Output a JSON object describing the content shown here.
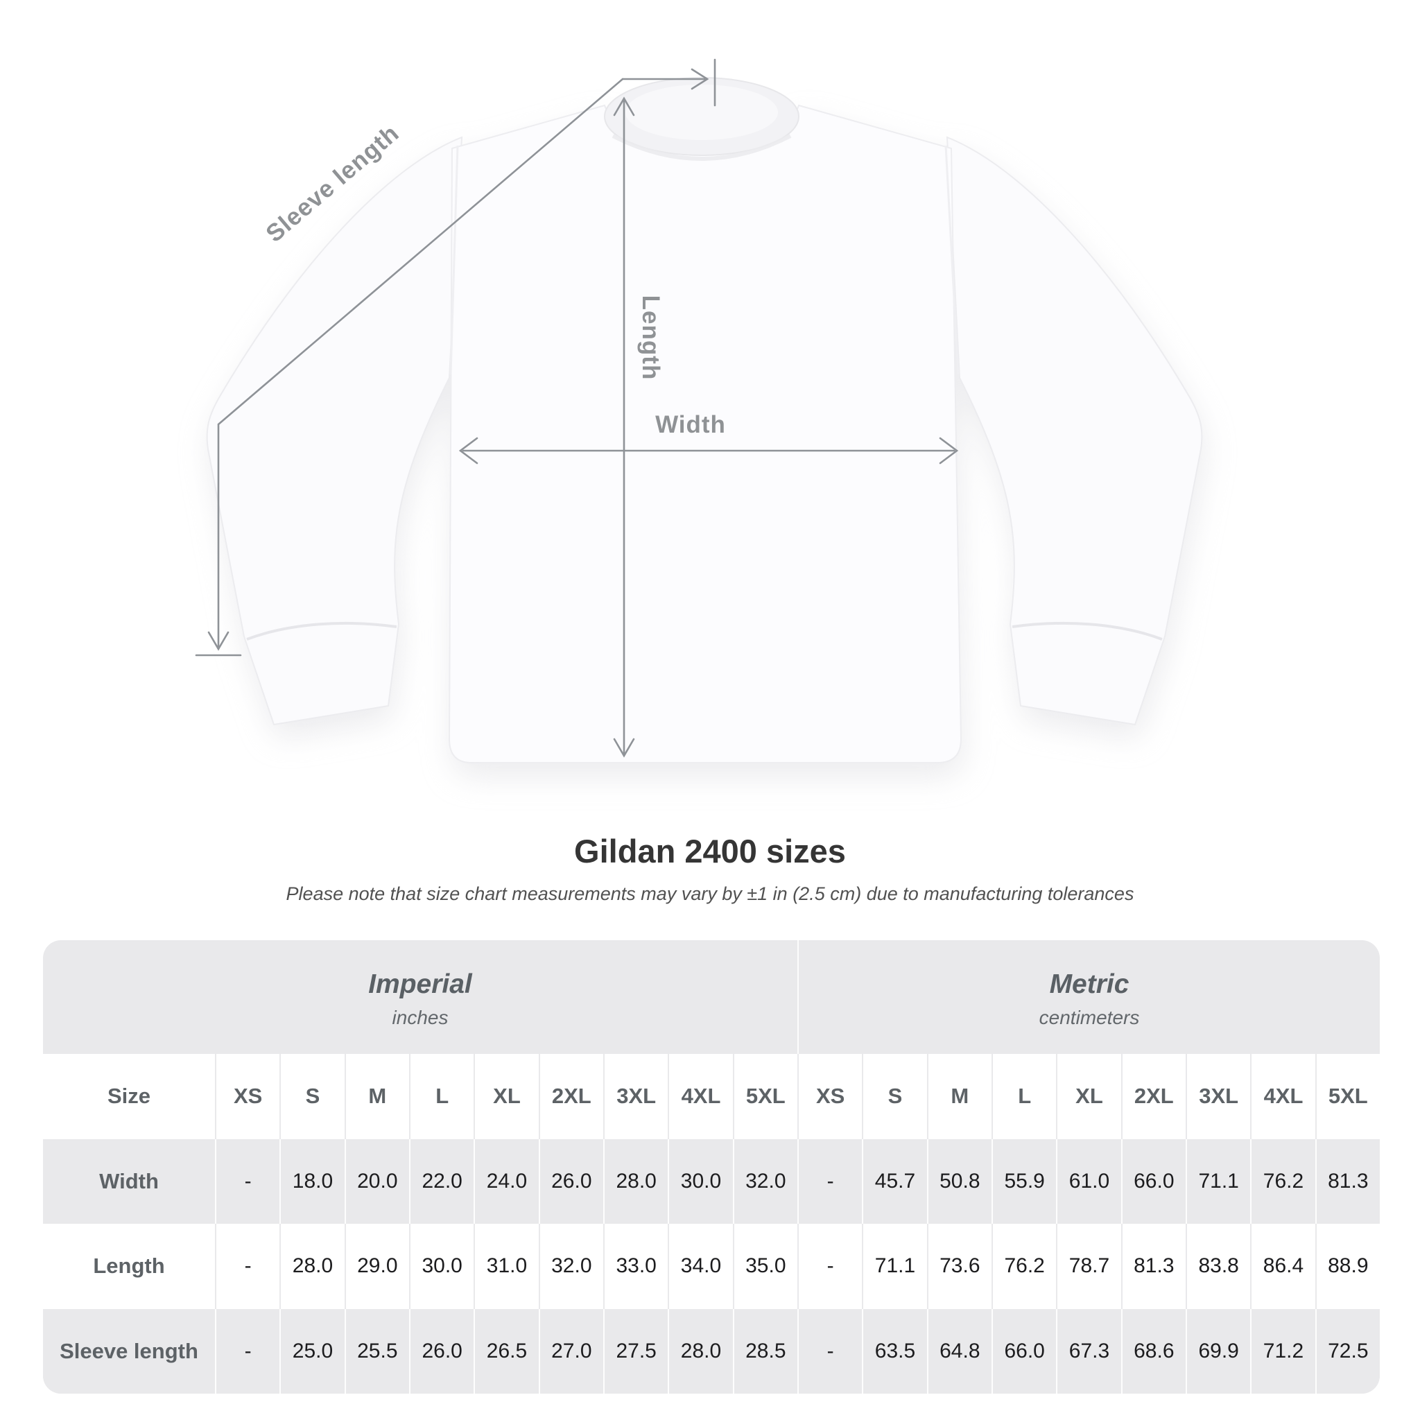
{
  "diagram": {
    "sleeve_length_label": "Sleeve length",
    "length_label": "Length",
    "width_label": "Width"
  },
  "title": "Gildan 2400 sizes",
  "subtitle": "Please note that size chart measurements may vary by ±1 in (2.5 cm) due to manufacturing tolerances",
  "table": {
    "size_header": "Size",
    "groups": [
      {
        "label": "Imperial",
        "unit": "inches"
      },
      {
        "label": "Metric",
        "unit": "centimeters"
      }
    ],
    "sizes": [
      "XS",
      "S",
      "M",
      "L",
      "XL",
      "2XL",
      "3XL",
      "4XL",
      "5XL"
    ],
    "rows": [
      {
        "label": "Width",
        "imperial": [
          "-",
          "18.0",
          "20.0",
          "22.0",
          "24.0",
          "26.0",
          "28.0",
          "30.0",
          "32.0"
        ],
        "metric": [
          "-",
          "45.7",
          "50.8",
          "55.9",
          "61.0",
          "66.0",
          "71.1",
          "76.2",
          "81.3"
        ]
      },
      {
        "label": "Length",
        "imperial": [
          "-",
          "28.0",
          "29.0",
          "30.0",
          "31.0",
          "32.0",
          "33.0",
          "34.0",
          "35.0"
        ],
        "metric": [
          "-",
          "71.1",
          "73.6",
          "76.2",
          "78.7",
          "81.3",
          "83.8",
          "86.4",
          "88.9"
        ]
      },
      {
        "label": "Sleeve length",
        "imperial": [
          "-",
          "25.0",
          "25.5",
          "26.0",
          "26.5",
          "27.0",
          "27.5",
          "28.0",
          "28.5"
        ],
        "metric": [
          "-",
          "63.5",
          "64.8",
          "66.0",
          "67.3",
          "68.6",
          "69.9",
          "71.2",
          "72.5"
        ]
      }
    ]
  },
  "colors": {
    "arrow_gray": "#8e9297",
    "measure_label_gray": "#8f9295",
    "title_text": "#353535",
    "data_text": "#1c1c1e",
    "header_text": "#5d6266",
    "table_bg": "#e9e9eb"
  }
}
